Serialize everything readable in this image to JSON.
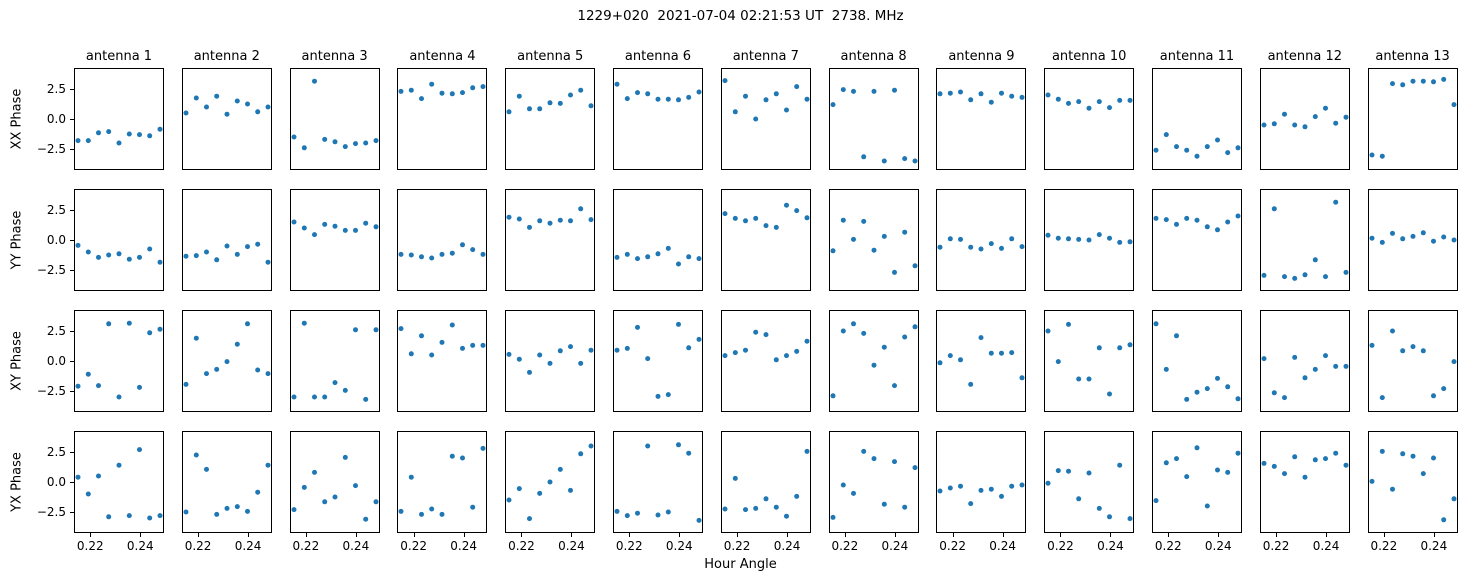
{
  "figure": {
    "title": "1229+020  2021-07-04 02:21:53 UT  2738. MHz",
    "xlabel": "Hour Angle",
    "background": "#ffffff",
    "text_color": "#000000"
  },
  "chart_data": {
    "type": "scatter",
    "marker_color": "#1f77b4",
    "marker_radius_px": 2.5,
    "grid": "off",
    "x": [
      0.2151,
      0.2192,
      0.2233,
      0.2274,
      0.2315,
      0.2356,
      0.2397,
      0.2438,
      0.2479
    ],
    "xlim": [
      0.2135,
      0.2495
    ],
    "ylim": [
      -4.25,
      4.25
    ],
    "xticks": [
      0.22,
      0.24
    ],
    "xtick_labels": [
      "0.22",
      "0.24"
    ],
    "yticks": [
      2.5,
      0.0,
      -2.5
    ],
    "ytick_labels": [
      "2.5",
      "0.0",
      "−2.5"
    ],
    "col_titles": [
      "antenna 1",
      "antenna 2",
      "antenna 3",
      "antenna 4",
      "antenna 5",
      "antenna 6",
      "antenna 7",
      "antenna 8",
      "antenna 9",
      "antenna 10",
      "antenna 11",
      "antenna 12",
      "antenna 13"
    ],
    "row_labels": [
      "XX Phase",
      "YY Phase",
      "XY Phase",
      "YX Phase"
    ],
    "series": [
      {
        "row": "XX Phase",
        "antennas": [
          [
            -1.8,
            -1.8,
            -1.15,
            -1.05,
            -2.0,
            -1.25,
            -1.3,
            -1.4,
            -0.85
          ],
          [
            0.5,
            1.75,
            1.0,
            1.9,
            0.4,
            1.5,
            1.25,
            0.6,
            1.0
          ],
          [
            -1.5,
            -2.4,
            3.15,
            -1.7,
            -1.9,
            -2.3,
            -2.05,
            -2.0,
            -1.8
          ],
          [
            2.3,
            2.4,
            1.7,
            2.9,
            2.15,
            2.1,
            2.2,
            2.6,
            2.7
          ],
          [
            0.6,
            1.9,
            0.85,
            0.85,
            1.35,
            1.3,
            2.0,
            2.4,
            1.1
          ],
          [
            2.9,
            1.7,
            2.2,
            2.1,
            1.65,
            1.65,
            1.6,
            1.8,
            2.25
          ],
          [
            3.2,
            0.6,
            1.9,
            0.0,
            1.6,
            2.1,
            0.75,
            2.7,
            1.65
          ],
          [
            1.2,
            2.45,
            2.3,
            -3.15,
            2.3,
            -3.5,
            2.4,
            -3.3,
            -3.5
          ],
          [
            2.1,
            2.15,
            2.25,
            1.6,
            2.1,
            1.4,
            2.15,
            1.9,
            1.8
          ],
          [
            2.0,
            1.65,
            1.3,
            1.45,
            0.9,
            1.45,
            0.95,
            1.55,
            1.55
          ],
          [
            -2.6,
            -1.3,
            -2.3,
            -2.6,
            -3.1,
            -2.3,
            -1.75,
            -2.8,
            -2.4
          ],
          [
            -0.5,
            -0.4,
            0.4,
            -0.5,
            -0.65,
            0.2,
            0.9,
            -0.35,
            0.15
          ],
          [
            -3.0,
            -3.1,
            2.95,
            2.85,
            3.15,
            3.15,
            3.1,
            3.3,
            1.2
          ]
        ]
      },
      {
        "row": "YY Phase",
        "antennas": [
          [
            -0.45,
            -1.0,
            -1.45,
            -1.25,
            -1.15,
            -1.6,
            -1.45,
            -0.75,
            -1.85
          ],
          [
            -1.35,
            -1.3,
            -1.0,
            -1.65,
            -0.5,
            -1.2,
            -0.55,
            -0.35,
            -1.85
          ],
          [
            1.5,
            1.0,
            0.45,
            1.3,
            1.15,
            0.8,
            0.8,
            1.4,
            1.1
          ],
          [
            -1.2,
            -1.25,
            -1.4,
            -1.5,
            -1.2,
            -1.1,
            -0.4,
            -0.8,
            -1.2
          ],
          [
            1.9,
            1.75,
            1.05,
            1.6,
            1.4,
            1.65,
            1.6,
            2.6,
            1.7
          ],
          [
            -1.45,
            -1.2,
            -1.55,
            -1.4,
            -1.15,
            -0.7,
            -2.0,
            -1.4,
            -1.55
          ],
          [
            2.2,
            1.8,
            1.6,
            1.8,
            1.2,
            1.05,
            2.9,
            2.45,
            1.85
          ],
          [
            -0.9,
            1.65,
            0.05,
            1.55,
            -0.85,
            0.3,
            -2.7,
            0.65,
            -2.15
          ],
          [
            -0.6,
            0.1,
            0.05,
            -0.6,
            -0.75,
            -0.3,
            -0.7,
            0.1,
            -0.55
          ],
          [
            0.4,
            0.15,
            0.1,
            0.05,
            0.0,
            0.45,
            0.15,
            -0.2,
            -0.15
          ],
          [
            1.8,
            1.7,
            1.3,
            1.8,
            1.65,
            1.1,
            0.85,
            1.5,
            2.0
          ],
          [
            -2.95,
            2.6,
            -3.05,
            -3.2,
            -2.9,
            -1.65,
            -3.05,
            3.15,
            -2.7
          ],
          [
            0.15,
            -0.2,
            0.55,
            0.1,
            0.3,
            0.6,
            -0.1,
            0.25,
            0.0
          ]
        ]
      },
      {
        "row": "XY Phase",
        "antennas": [
          [
            -2.1,
            -1.1,
            -2.05,
            3.1,
            -3.0,
            3.15,
            -2.2,
            2.35,
            2.65
          ],
          [
            -1.95,
            1.9,
            -1.05,
            -0.7,
            -0.05,
            1.4,
            3.1,
            -0.75,
            -1.05
          ],
          [
            -3.0,
            3.15,
            -3.0,
            -3.0,
            -1.8,
            -2.45,
            2.6,
            -3.2,
            2.6
          ],
          [
            2.7,
            0.6,
            2.1,
            0.5,
            1.55,
            3.0,
            1.05,
            1.3,
            1.3
          ],
          [
            0.55,
            0.15,
            -0.95,
            0.5,
            -0.2,
            0.85,
            1.2,
            -0.2,
            0.9
          ],
          [
            0.9,
            1.05,
            2.8,
            0.2,
            -2.95,
            -2.8,
            3.05,
            1.1,
            1.8
          ],
          [
            0.45,
            0.7,
            0.9,
            2.4,
            2.2,
            0.1,
            0.45,
            0.8,
            1.65
          ],
          [
            -2.9,
            2.5,
            3.1,
            2.3,
            -0.35,
            1.15,
            -2.05,
            2.0,
            2.85
          ],
          [
            -0.15,
            0.45,
            0.1,
            -1.95,
            1.95,
            0.65,
            0.65,
            0.7,
            -1.4
          ],
          [
            2.5,
            -0.05,
            3.05,
            -1.5,
            -1.5,
            1.1,
            -2.75,
            1.1,
            1.35
          ],
          [
            3.1,
            -0.7,
            2.1,
            -3.2,
            -2.6,
            -2.3,
            -1.45,
            -2.15,
            -3.15
          ],
          [
            0.2,
            -2.65,
            -3.05,
            0.3,
            -1.4,
            -0.7,
            0.45,
            -0.45,
            -0.45
          ],
          [
            1.3,
            -3.05,
            2.5,
            0.85,
            1.2,
            0.85,
            -2.9,
            -2.3,
            -0.05
          ]
        ]
      },
      {
        "row": "YX Phase",
        "antennas": [
          [
            0.4,
            -1.0,
            0.5,
            -2.9,
            1.4,
            -2.8,
            2.7,
            -3.0,
            -2.8
          ],
          [
            -2.5,
            2.25,
            1.05,
            -2.7,
            -2.2,
            -2.05,
            -2.45,
            -0.85,
            1.4
          ],
          [
            -2.3,
            -0.45,
            0.8,
            -1.65,
            -1.25,
            2.05,
            -0.3,
            -3.1,
            -1.65
          ],
          [
            -2.45,
            0.4,
            -2.7,
            -2.25,
            -2.7,
            2.15,
            2.0,
            -2.1,
            2.8
          ],
          [
            -1.5,
            -0.55,
            -3.05,
            -0.95,
            0.0,
            1.05,
            -0.7,
            2.35,
            3.0
          ],
          [
            -2.45,
            -2.8,
            -2.6,
            3.0,
            -2.75,
            -2.5,
            3.1,
            2.4,
            -3.2
          ],
          [
            -2.25,
            0.3,
            -2.3,
            -2.2,
            -1.4,
            -2.1,
            -2.85,
            -1.2,
            2.55
          ],
          [
            -2.95,
            -0.25,
            -0.95,
            2.55,
            1.95,
            -1.85,
            1.7,
            -2.1,
            1.2
          ],
          [
            -0.75,
            -0.5,
            -0.35,
            -1.8,
            -0.7,
            -0.6,
            -1.2,
            -0.35,
            -0.25
          ],
          [
            -0.1,
            0.95,
            0.9,
            -1.4,
            0.75,
            -2.2,
            -2.9,
            1.4,
            -3.05
          ],
          [
            -1.55,
            1.6,
            1.95,
            0.45,
            2.85,
            -2.0,
            1.0,
            0.8,
            2.4
          ],
          [
            1.55,
            1.3,
            0.7,
            2.1,
            0.4,
            1.85,
            1.95,
            2.4,
            1.4
          ],
          [
            0.05,
            2.55,
            -0.6,
            2.35,
            2.15,
            0.7,
            2.0,
            -3.15,
            -1.4
          ]
        ]
      }
    ]
  }
}
